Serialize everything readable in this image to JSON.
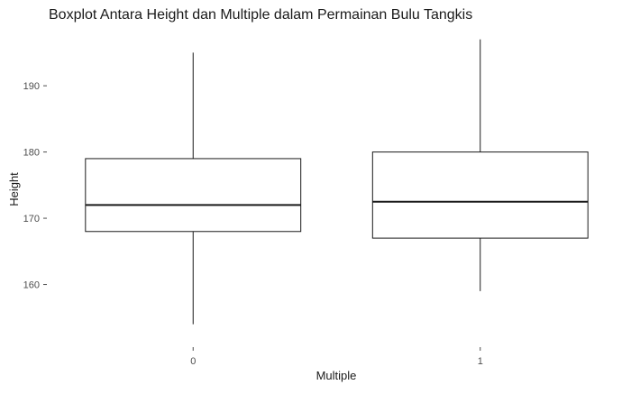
{
  "chart_data": {
    "type": "boxplot",
    "title": "Boxplot Antara Height dan Multiple dalam Permainan Bulu Tangkis",
    "xlabel": "Multiple",
    "ylabel": "Height",
    "categories": [
      "0",
      "1"
    ],
    "boxes": [
      {
        "category": "0",
        "whisker_low": 154,
        "q1": 168,
        "median": 172,
        "q3": 179,
        "whisker_high": 195
      },
      {
        "category": "1",
        "whisker_low": 159,
        "q1": 167,
        "median": 172.5,
        "q3": 180,
        "whisker_high": 197
      }
    ],
    "yticks": [
      160,
      170,
      180,
      190
    ],
    "ylim": [
      151.5,
      197.5
    ],
    "grid": false,
    "legend": "none"
  }
}
